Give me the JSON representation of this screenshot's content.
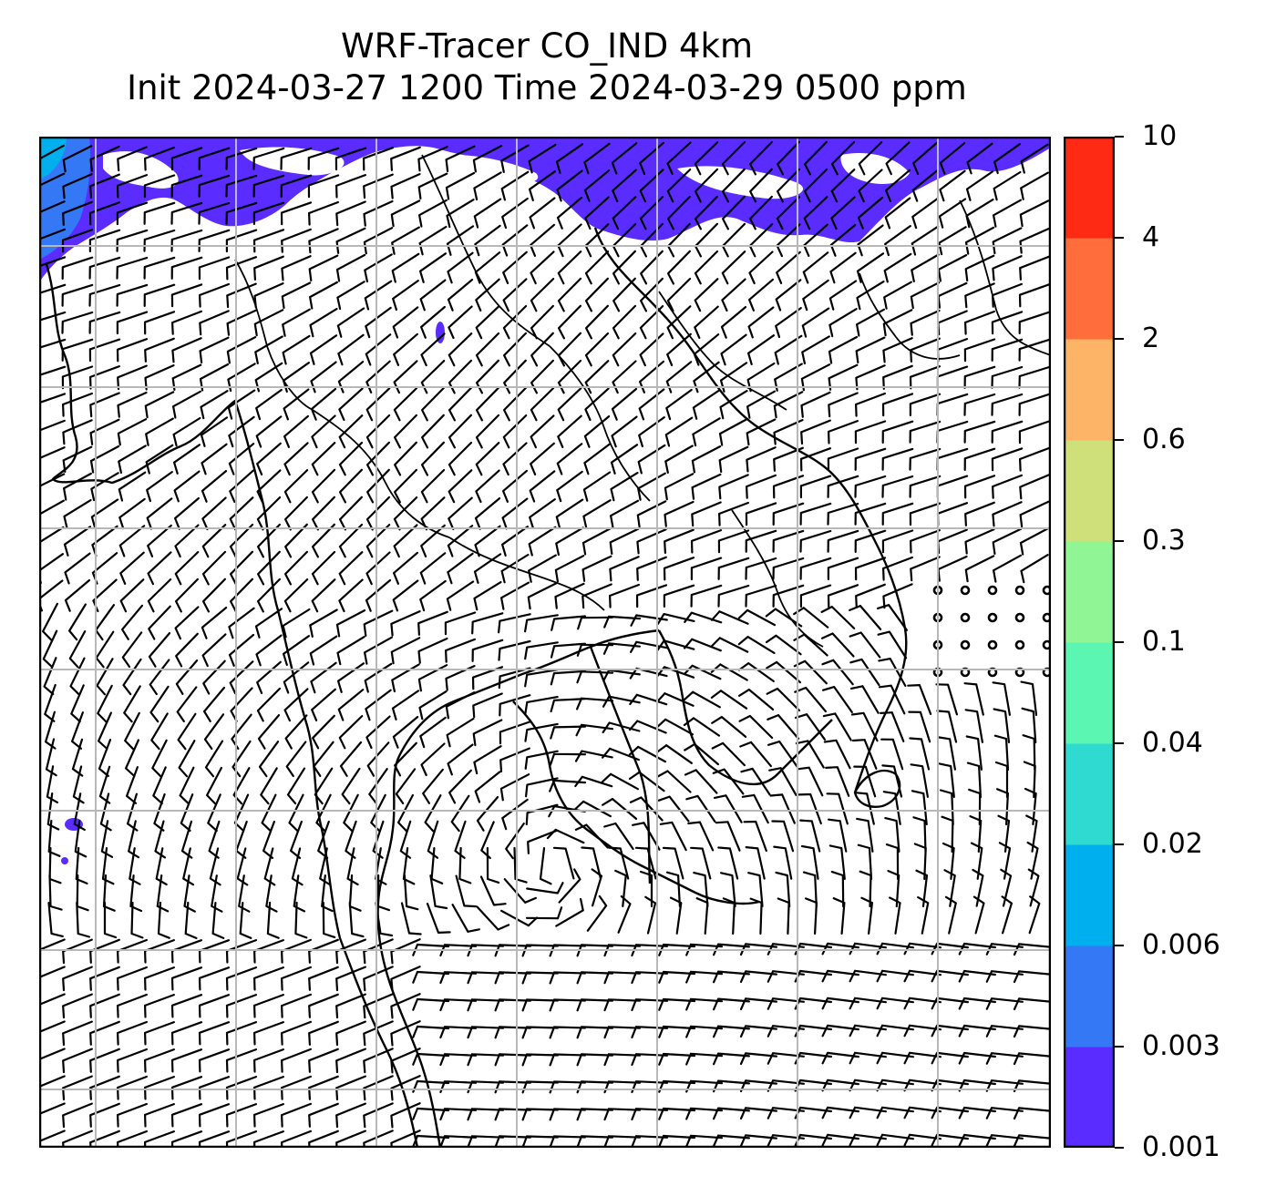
{
  "title": {
    "line1": "WRF-Tracer CO_IND 4km",
    "line2": "Init 2024-03-27 1200 Time 2024-03-29 0500 ppm"
  },
  "map": {
    "grid": true,
    "field": "CO_IND tracer concentration",
    "field_colors": {
      "0.001": "#5b2cff",
      "0.003": "#3478f6",
      "0.006": "#00b0ee",
      "0.02": "#2fdbd0",
      "0.04": "#5cf6b3",
      "0.1": "#90f595",
      "0.3": "#cfe07a",
      "0.6": "#fdb466",
      "2": "#fe6d3b",
      "4": "#ff2a14"
    },
    "overlays": [
      "wind-barbs",
      "coastlines",
      "country-borders",
      "gridlines"
    ]
  },
  "colorbar": {
    "ticks": [
      "0.001",
      "0.003",
      "0.006",
      "0.02",
      "0.04",
      "0.1",
      "0.3",
      "0.6",
      "2",
      "4",
      "10"
    ],
    "colors": [
      "#5b2cff",
      "#3478f6",
      "#00b0ee",
      "#2fdbd0",
      "#5cf6b3",
      "#90f595",
      "#cfe07a",
      "#fdb466",
      "#fe6d3b",
      "#ff2a14"
    ]
  }
}
